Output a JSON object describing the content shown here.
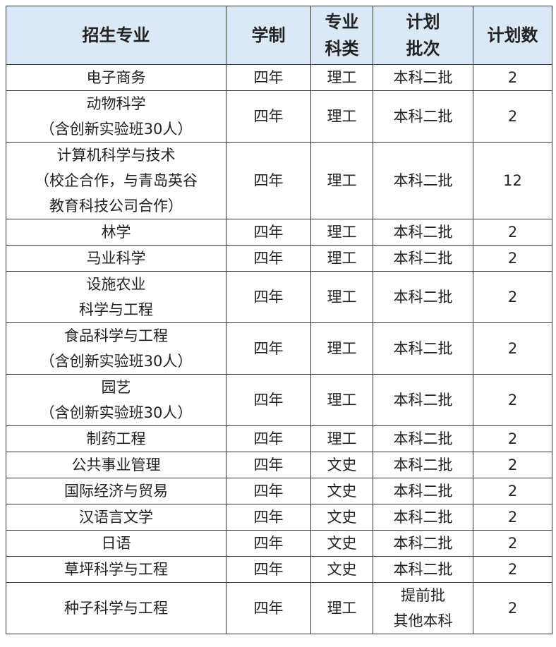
{
  "table": {
    "header": [
      [
        "招生专业"
      ],
      [
        "学制"
      ],
      [
        "专业",
        "科类"
      ],
      [
        "计划",
        "批次"
      ],
      [
        "计划数"
      ]
    ],
    "rows": [
      [
        [
          "电子商务"
        ],
        [
          "四年"
        ],
        [
          "理工"
        ],
        [
          "本科二批"
        ],
        [
          "2"
        ]
      ],
      [
        [
          "动物科学",
          "（含创新实验班30人）"
        ],
        [
          "四年"
        ],
        [
          "理工"
        ],
        [
          "本科二批"
        ],
        [
          "2"
        ]
      ],
      [
        [
          "计算机科学与技术",
          "（校企合作，与青岛英谷",
          "教育科技公司合作）"
        ],
        [
          "四年"
        ],
        [
          "理工"
        ],
        [
          "本科二批"
        ],
        [
          "12"
        ]
      ],
      [
        [
          "林学"
        ],
        [
          "四年"
        ],
        [
          "理工"
        ],
        [
          "本科二批"
        ],
        [
          "2"
        ]
      ],
      [
        [
          "马业科学"
        ],
        [
          "四年"
        ],
        [
          "理工"
        ],
        [
          "本科二批"
        ],
        [
          "2"
        ]
      ],
      [
        [
          "设施农业",
          "科学与工程"
        ],
        [
          "四年"
        ],
        [
          "理工"
        ],
        [
          "本科二批"
        ],
        [
          "2"
        ]
      ],
      [
        [
          "食品科学与工程",
          "（含创新实验班30人）"
        ],
        [
          "四年"
        ],
        [
          "理工"
        ],
        [
          "本科二批"
        ],
        [
          "2"
        ]
      ],
      [
        [
          "园艺",
          "（含创新实验班30人）"
        ],
        [
          "四年"
        ],
        [
          "理工"
        ],
        [
          "本科二批"
        ],
        [
          "2"
        ]
      ],
      [
        [
          "制药工程"
        ],
        [
          "四年"
        ],
        [
          "理工"
        ],
        [
          "本科二批"
        ],
        [
          "2"
        ]
      ],
      [
        [
          "公共事业管理"
        ],
        [
          "四年"
        ],
        [
          "文史"
        ],
        [
          "本科二批"
        ],
        [
          "2"
        ]
      ],
      [
        [
          "国际经济与贸易"
        ],
        [
          "四年"
        ],
        [
          "文史"
        ],
        [
          "本科二批"
        ],
        [
          "2"
        ]
      ],
      [
        [
          "汉语言文学"
        ],
        [
          "四年"
        ],
        [
          "文史"
        ],
        [
          "本科二批"
        ],
        [
          "2"
        ]
      ],
      [
        [
          "日语"
        ],
        [
          "四年"
        ],
        [
          "文史"
        ],
        [
          "本科二批"
        ],
        [
          "2"
        ]
      ],
      [
        [
          "草坪科学与工程"
        ],
        [
          "四年"
        ],
        [
          "文史"
        ],
        [
          "本科二批"
        ],
        [
          "2"
        ]
      ],
      [
        [
          "种子科学与工程"
        ],
        [
          "四年"
        ],
        [
          "理工"
        ],
        [
          "提前批",
          "其他本科"
        ],
        [
          "2"
        ]
      ]
    ]
  }
}
